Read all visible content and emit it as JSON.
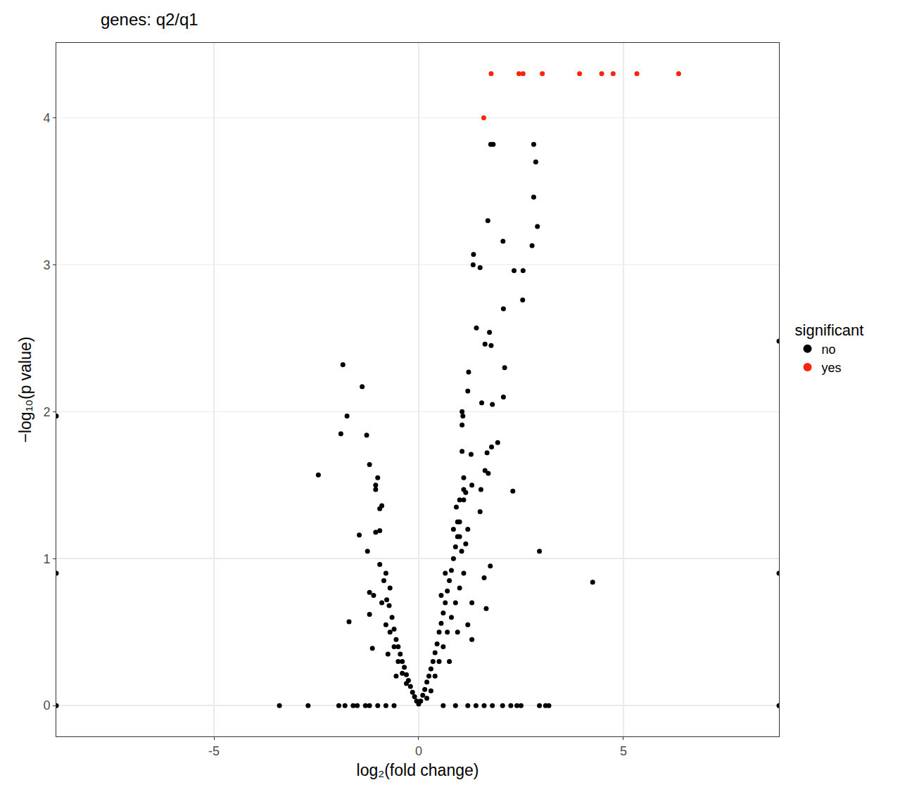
{
  "chart_data": {
    "type": "scatter",
    "title": "genes: q2/q1",
    "x_label": "log₂(fold change)",
    "y_label": "−log₁₀(p value)",
    "legend_title": "significant",
    "legend": "right",
    "grid": true,
    "xlim": [
      -8.85,
      8.8
    ],
    "xticks": [
      -5,
      0,
      5
    ],
    "ylim": [
      -0.21,
      4.51
    ],
    "yticks": [
      0,
      1,
      2,
      3,
      4
    ],
    "series": [
      {
        "name": "no",
        "color": "#000000",
        "marker": "circle",
        "x": [
          -8.85,
          -8.85,
          -8.85,
          8.8,
          8.8,
          8.8,
          1.76,
          1.82,
          2.81,
          2.86,
          2.81,
          1.69,
          2.9,
          2.06,
          2.77,
          1.34,
          1.33,
          1.5,
          2.33,
          2.55,
          2.54,
          2.07,
          1.41,
          1.73,
          1.62,
          1.77,
          1.22,
          2.1,
          2.07,
          1.2,
          1.54,
          1.8,
          1.06,
          1.08,
          1.93,
          1.06,
          1.78,
          1.67,
          1.06,
          1.28,
          1.62,
          1.7,
          1.1,
          1.3,
          1.1,
          1.52,
          2.3,
          1.15,
          1.0,
          1.1,
          0.92,
          1.5,
          0.95,
          1.2,
          1.0,
          2.95,
          4.25,
          1.75,
          1.6,
          1.65,
          1.3,
          -1.85,
          -1.38,
          -1.75,
          -1.9,
          -1.27,
          -2.45,
          -1.2,
          -1.0,
          -1.05,
          -1.05,
          -0.9,
          -0.95,
          -1.45,
          -1.05,
          -0.95,
          -1.25,
          -1.7,
          -1.13,
          -0.95,
          -0.8,
          -1.2,
          -1.1,
          -1.2,
          -0.7,
          -3.4,
          -2.7,
          -1.95,
          -1.8,
          -1.6,
          -1.5,
          -1.3,
          -1.2,
          -1.0,
          -0.8,
          -0.6,
          0.6,
          0.9,
          1.2,
          1.4,
          1.6,
          1.8,
          2.05,
          2.25,
          2.4,
          2.5,
          2.95,
          3.1,
          3.18,
          -0.85,
          -0.78,
          -0.72,
          -0.65,
          -0.6,
          -0.55,
          -0.5,
          -0.45,
          -0.4,
          -0.35,
          -0.3,
          -0.25,
          -0.2,
          -0.15,
          -0.1,
          -0.05,
          0,
          -0.7,
          -0.6,
          -0.5,
          -0.4,
          -0.3,
          -0.8,
          -0.9,
          -0.75,
          -0.55,
          0.05,
          0.1,
          0.15,
          0.2,
          0.25,
          0.3,
          0.35,
          0.4,
          0.45,
          0.5,
          0.55,
          0.6,
          0.65,
          0.7,
          0.75,
          0.8,
          0.85,
          0.9,
          0.95,
          1.0,
          0.4,
          0.5,
          0.6,
          0.7,
          0.8,
          0.9,
          1.0,
          1.1,
          1.2,
          1.3,
          0.75,
          0.95,
          0.65,
          0.55,
          1.05,
          1.15,
          0.85,
          0.3,
          0.2
        ],
        "values": [
          1.97,
          0.9,
          0,
          2.48,
          0.9,
          0,
          3.82,
          3.82,
          3.82,
          3.7,
          3.46,
          3.3,
          3.26,
          3.16,
          3.13,
          3.07,
          3.0,
          2.98,
          2.96,
          2.96,
          2.76,
          2.7,
          2.57,
          2.54,
          2.46,
          2.45,
          2.27,
          2.3,
          2.1,
          2.14,
          2.06,
          2.05,
          2.0,
          1.97,
          1.79,
          1.91,
          1.76,
          1.72,
          1.73,
          1.71,
          1.6,
          1.58,
          1.55,
          1.5,
          1.47,
          1.47,
          1.46,
          1.45,
          1.4,
          1.4,
          1.35,
          1.32,
          1.25,
          1.2,
          1.15,
          1.05,
          0.84,
          0.95,
          0.87,
          0.66,
          0.7,
          2.32,
          2.17,
          1.97,
          1.85,
          1.84,
          1.57,
          1.64,
          1.55,
          1.5,
          1.47,
          1.36,
          1.34,
          1.16,
          1.18,
          1.19,
          1.05,
          0.57,
          0.39,
          0.96,
          0.9,
          0.77,
          0.75,
          0.62,
          0.8,
          0,
          0,
          0,
          0,
          0,
          0,
          0,
          0,
          0,
          0,
          0,
          0,
          0,
          0,
          0,
          0,
          0,
          0,
          0,
          0,
          0,
          0,
          0,
          0,
          0.85,
          0.72,
          0.68,
          0.6,
          0.52,
          0.45,
          0.4,
          0.35,
          0.3,
          0.26,
          0.21,
          0.17,
          0.13,
          0.09,
          0.06,
          0.03,
          0.01,
          0.5,
          0.4,
          0.3,
          0.22,
          0.15,
          0.55,
          0.7,
          0.35,
          0.2,
          0.03,
          0.07,
          0.11,
          0.16,
          0.2,
          0.25,
          0.3,
          0.36,
          0.42,
          0.5,
          0.56,
          0.63,
          0.7,
          0.78,
          0.85,
          0.92,
          1.0,
          1.08,
          1.15,
          1.25,
          0.2,
          0.3,
          0.4,
          0.5,
          0.6,
          0.7,
          0.8,
          0.9,
          0.55,
          0.45,
          0.3,
          0.5,
          0.9,
          0.75,
          1.05,
          1.1,
          1.2,
          0.1,
          0.05
        ]
      },
      {
        "name": "yes",
        "color": "#f8250c",
        "marker": "circle",
        "x": [
          1.77,
          2.45,
          2.55,
          3.02,
          3.93,
          4.47,
          4.75,
          5.33,
          6.35,
          1.59
        ],
        "values": [
          4.3,
          4.3,
          4.3,
          4.3,
          4.3,
          4.3,
          4.3,
          4.3,
          4.3,
          4.0
        ]
      }
    ]
  }
}
